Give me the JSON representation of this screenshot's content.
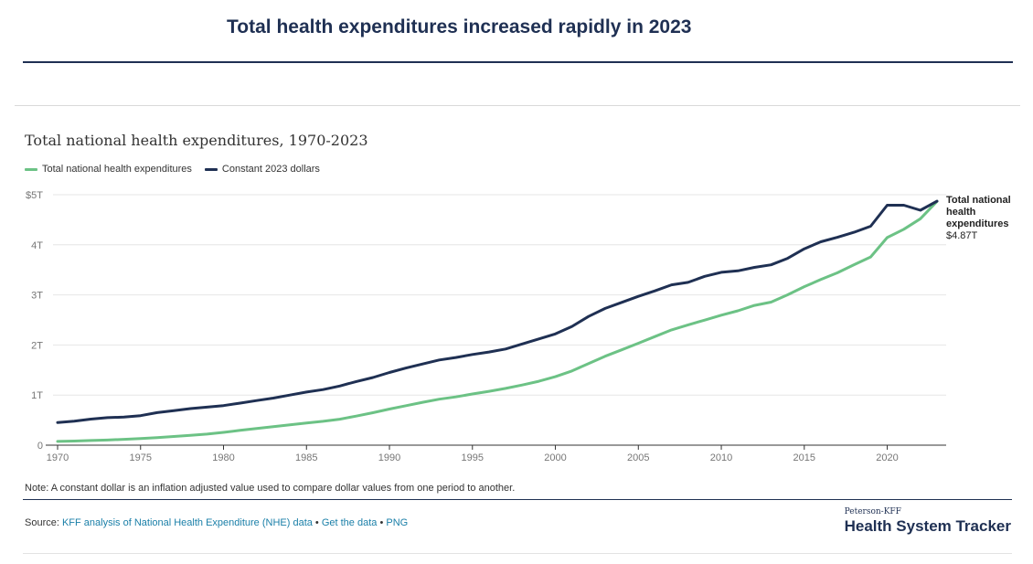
{
  "headline": "Total health expenditures increased rapidly in 2023",
  "colors": {
    "nominal": "#6cc285",
    "constant": "#1f3053",
    "grid": "#e6e6e6",
    "axis": "#333333"
  },
  "legend": {
    "nominal": "Total national health expenditures",
    "constant": "Constant 2023 dollars"
  },
  "end_label": {
    "name": "Total national health expenditures",
    "value": "$4.87T"
  },
  "note": "Note: A constant dollar is an inflation adjusted value used to compare dollar values from one period to another.",
  "source": {
    "prefix": "Source: ",
    "link1": "KFF analysis of National Health Expenditure (NHE) data",
    "sep1": " • ",
    "link2": "Get the data",
    "sep2": " • ",
    "link3": "PNG"
  },
  "logo": {
    "small": "Peterson-KFF",
    "big": "Health System Tracker"
  },
  "chart_data": {
    "type": "line",
    "title": "Total national health expenditures, 1970-2023",
    "xlabel": "",
    "ylabel": "",
    "xlim": [
      1970,
      2023
    ],
    "ylim": [
      0,
      5
    ],
    "x_ticks": [
      1970,
      1975,
      1980,
      1985,
      1990,
      1995,
      2000,
      2005,
      2010,
      2015,
      2020
    ],
    "y_ticks": [
      0,
      1,
      2,
      3,
      4,
      5
    ],
    "y_tick_labels": [
      "0",
      "1T",
      "2T",
      "3T",
      "4T",
      "$5T"
    ],
    "x": [
      1970,
      1971,
      1972,
      1973,
      1974,
      1975,
      1976,
      1977,
      1978,
      1979,
      1980,
      1981,
      1982,
      1983,
      1984,
      1985,
      1986,
      1987,
      1988,
      1989,
      1990,
      1991,
      1992,
      1993,
      1994,
      1995,
      1996,
      1997,
      1998,
      1999,
      2000,
      2001,
      2002,
      2003,
      2004,
      2005,
      2006,
      2007,
      2008,
      2009,
      2010,
      2011,
      2012,
      2013,
      2014,
      2015,
      2016,
      2017,
      2018,
      2019,
      2020,
      2021,
      2022,
      2023
    ],
    "series": [
      {
        "name": "Total national health expenditures",
        "key": "nominal",
        "values": [
          0.074,
          0.083,
          0.093,
          0.103,
          0.117,
          0.133,
          0.152,
          0.173,
          0.195,
          0.221,
          0.255,
          0.296,
          0.334,
          0.368,
          0.406,
          0.444,
          0.476,
          0.519,
          0.581,
          0.647,
          0.721,
          0.788,
          0.855,
          0.917,
          0.964,
          1.022,
          1.075,
          1.133,
          1.2,
          1.275,
          1.366,
          1.482,
          1.629,
          1.775,
          1.904,
          2.035,
          2.167,
          2.302,
          2.402,
          2.496,
          2.595,
          2.683,
          2.79,
          2.856,
          3.001,
          3.164,
          3.307,
          3.442,
          3.602,
          3.757,
          4.144,
          4.31,
          4.52,
          4.867
        ]
      },
      {
        "name": "Constant 2023 dollars",
        "key": "constant",
        "values": [
          0.45,
          0.48,
          0.52,
          0.55,
          0.56,
          0.59,
          0.65,
          0.69,
          0.73,
          0.76,
          0.79,
          0.84,
          0.89,
          0.94,
          1.0,
          1.06,
          1.11,
          1.18,
          1.27,
          1.35,
          1.45,
          1.54,
          1.62,
          1.7,
          1.75,
          1.81,
          1.86,
          1.92,
          2.02,
          2.12,
          2.22,
          2.37,
          2.57,
          2.73,
          2.85,
          2.97,
          3.08,
          3.2,
          3.25,
          3.37,
          3.45,
          3.48,
          3.55,
          3.6,
          3.73,
          3.92,
          4.06,
          4.15,
          4.25,
          4.37,
          4.79,
          4.79,
          4.69,
          4.87
        ]
      }
    ]
  }
}
